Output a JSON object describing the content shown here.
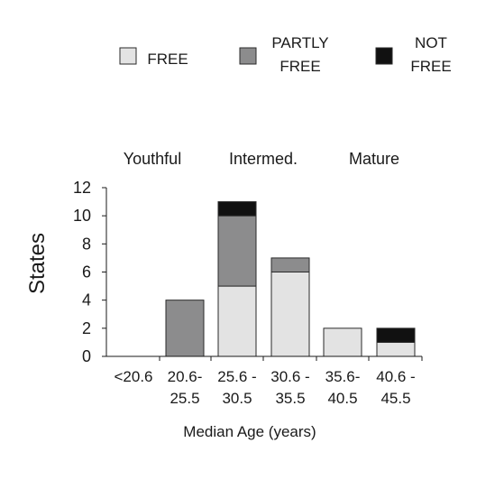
{
  "chart_data": {
    "type": "bar",
    "stacked": true,
    "categories": [
      [
        "<20.6"
      ],
      [
        "20.6-",
        "25.5"
      ],
      [
        "25.6 -",
        "30.5"
      ],
      [
        "30.6 -",
        "35.5"
      ],
      [
        "35.6-",
        "40.5"
      ],
      [
        "40.6 -",
        "45.5"
      ]
    ],
    "series": [
      {
        "name": [
          "FREE"
        ],
        "color": "#e3e3e3",
        "values": [
          0,
          0,
          5,
          6,
          2,
          1
        ]
      },
      {
        "name": [
          "PARTLY",
          "FREE"
        ],
        "color": "#8c8c8d",
        "values": [
          0,
          4,
          5,
          1,
          0,
          0
        ]
      },
      {
        "name": [
          "NOT",
          "FREE"
        ],
        "color": "#111111",
        "values": [
          0,
          0,
          1,
          0,
          0,
          1
        ]
      }
    ],
    "group_labels": [
      "Youthful",
      "Intermed.",
      "Mature"
    ],
    "xlabel": "Median Age (years)",
    "ylabel": "States",
    "ylim": [
      0,
      12
    ],
    "yticks": [
      "0",
      "2",
      "4",
      "6",
      "8",
      "10",
      "12"
    ],
    "legend_position": "top",
    "grid": false
  }
}
